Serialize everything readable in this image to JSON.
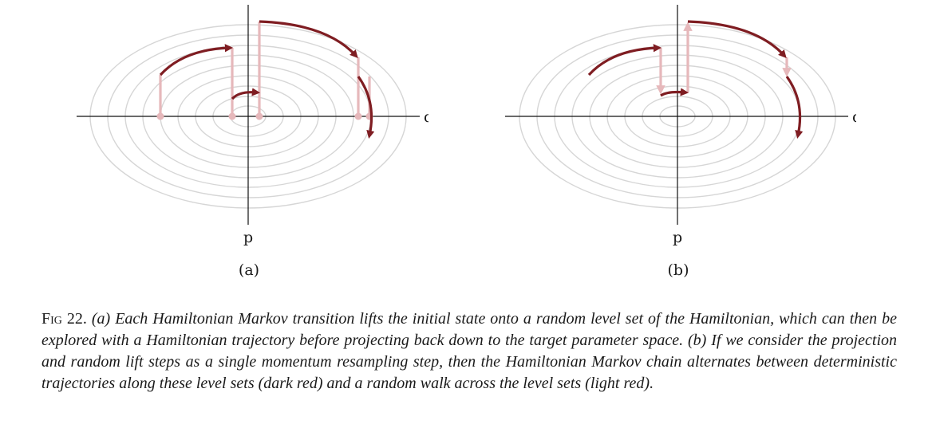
{
  "figure": {
    "panels": [
      {
        "id": "a",
        "label": "(a)",
        "x_axis_label": "q",
        "y_axis_label": "p"
      },
      {
        "id": "b",
        "label": "(b)",
        "x_axis_label": "q",
        "y_axis_label": "p"
      }
    ],
    "colors": {
      "contour": "#d6d6d6",
      "axis": "#111111",
      "dark_red": "#7f1d22",
      "light_red": "#e6b8bb"
    },
    "caption": {
      "label": "Fig 22.",
      "text": "(a) Each Hamiltonian Markov transition lifts the initial state onto a random level set of the Hamiltonian, which can then be explored with a Hamiltonian trajectory before projecting back down to the target parameter space. (b) If we consider the projection and random lift steps as a single momentum resampling step, then the Hamiltonian Markov chain alternates between deterministic trajectories along these level sets (dark red) and a random walk across the level sets (light red)."
    }
  }
}
